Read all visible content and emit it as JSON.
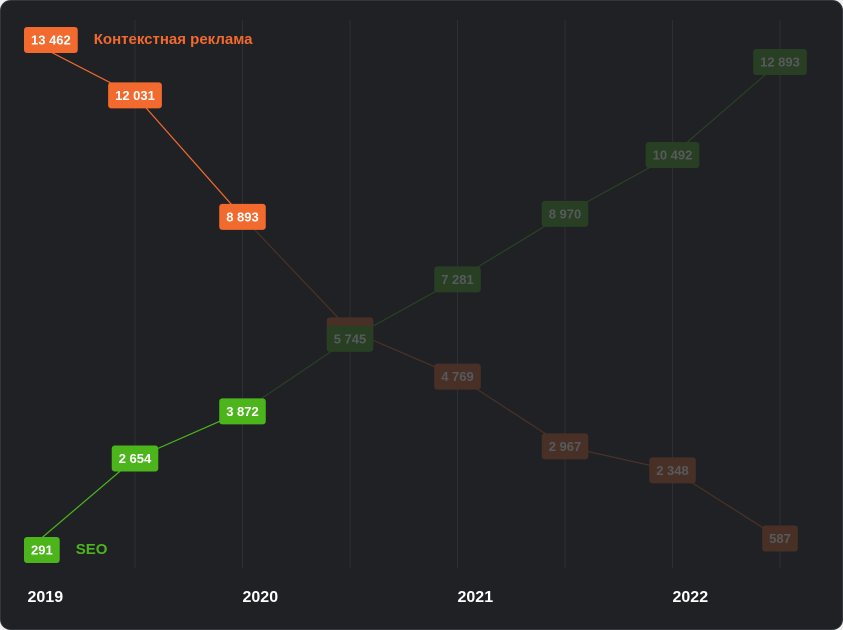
{
  "chart_data": {
    "type": "line",
    "categories": [
      "2019",
      null,
      "2020",
      null,
      "2021",
      null,
      "2022",
      null
    ],
    "series": [
      {
        "name": "Контекстная реклама",
        "color": "#f26a2e",
        "values": [
          13462,
          12031,
          8893,
          5964,
          4769,
          2967,
          2348,
          587
        ],
        "value_labels": [
          "13 462",
          "12 031",
          "8 893",
          "5 964",
          "4 769",
          "2 967",
          "2 348",
          "587"
        ]
      },
      {
        "name": "SEO",
        "color": "#4cb51c",
        "values": [
          291,
          2654,
          3872,
          5745,
          7281,
          8970,
          10492,
          12893
        ],
        "value_labels": [
          "291",
          "2 654",
          "3 872",
          "5 745",
          "7 281",
          "8 970",
          "10 492",
          "12 893"
        ]
      }
    ]
  }
}
